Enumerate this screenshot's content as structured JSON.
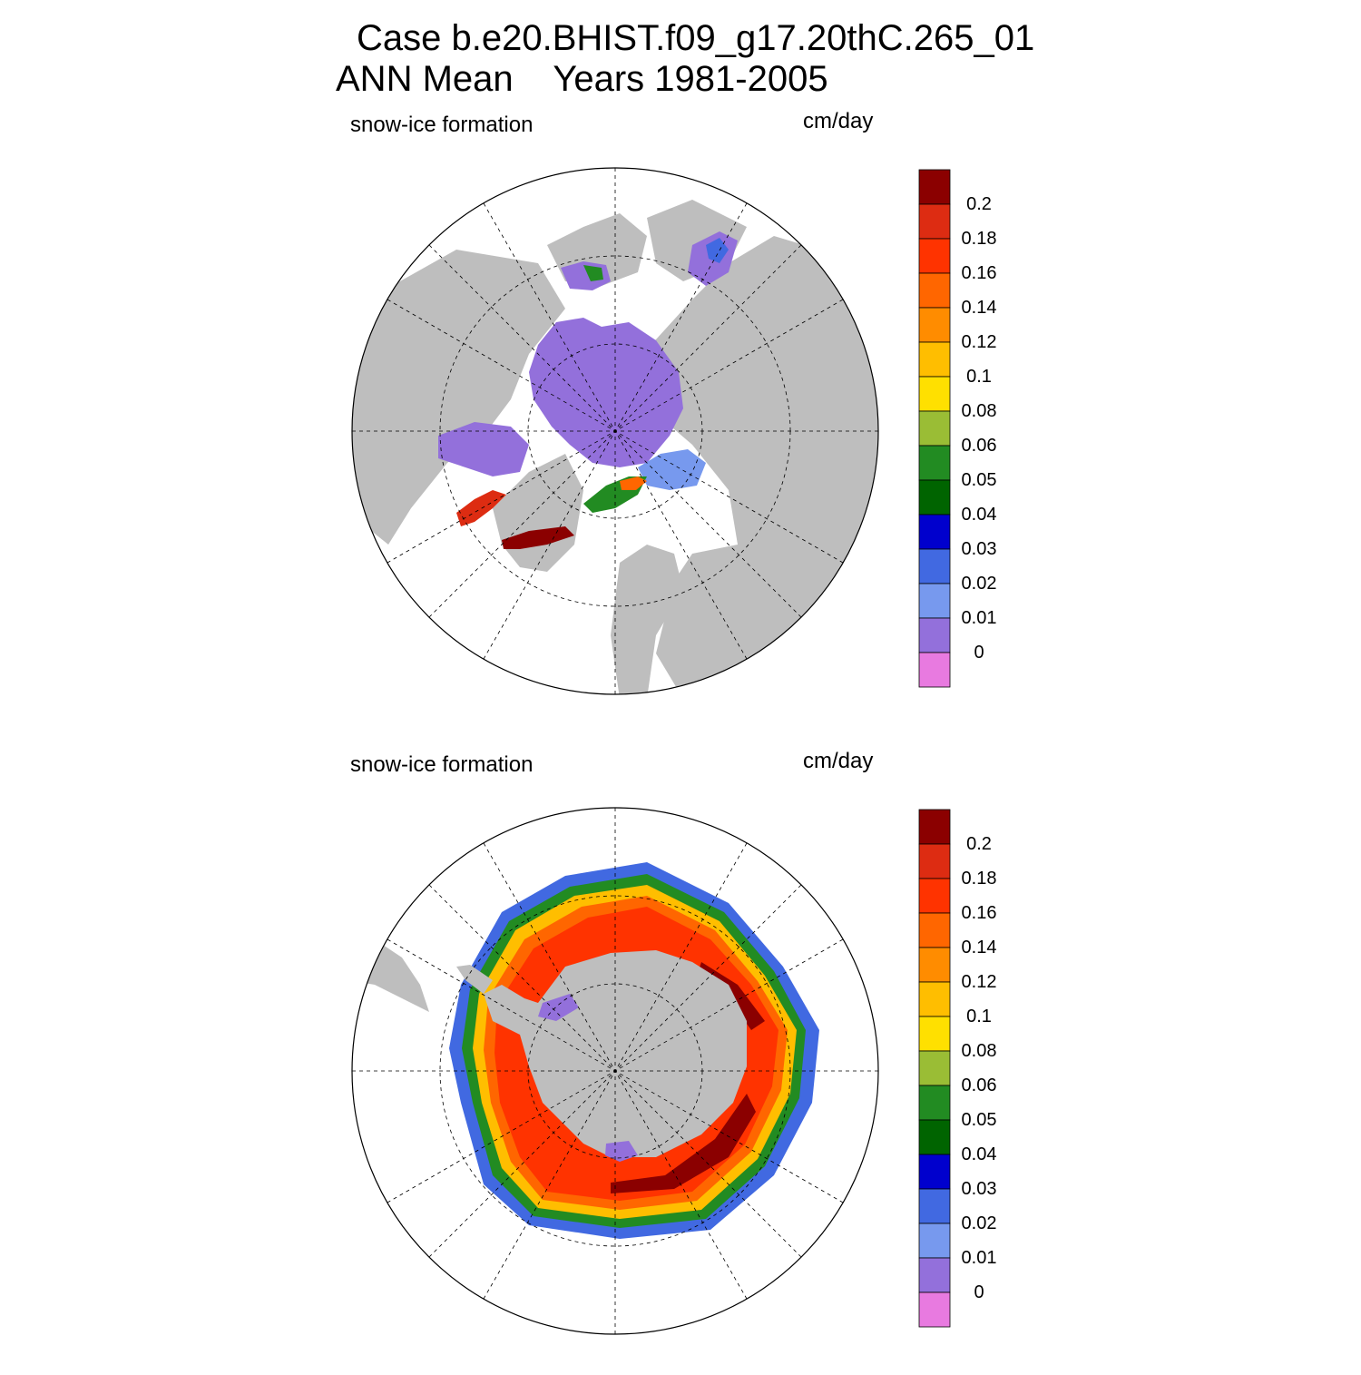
{
  "title": {
    "line1": "Case b.e20.BHIST.f09_g17.20thC.265_01",
    "line2": "ANN Mean    Years 1981-2005"
  },
  "panels": [
    {
      "id": "north",
      "hemisphere": "NH",
      "subtitle": "snow-ice formation",
      "units": "cm/day"
    },
    {
      "id": "south",
      "hemisphere": "SH",
      "subtitle": "snow-ice formation",
      "units": "cm/day"
    }
  ],
  "colorbar": {
    "labels": [
      "0.2",
      "0.18",
      "0.16",
      "0.14",
      "0.12",
      "0.1",
      "0.08",
      "0.06",
      "0.05",
      "0.04",
      "0.03",
      "0.02",
      "0.01",
      "0"
    ],
    "colors_top_to_bottom": [
      "#8B0000",
      "#DD2C12",
      "#FF3300",
      "#FF6600",
      "#FF8C00",
      "#FFBE00",
      "#FFE000",
      "#9ABD35",
      "#228B22",
      "#006400",
      "#0000CD",
      "#4169E1",
      "#7799EE",
      "#9370DB",
      "#E87AE0"
    ]
  },
  "map_style": {
    "land_color": "#BEBEBE",
    "ocean_color": "#FFFFFF",
    "grid_line": "dashed"
  }
}
